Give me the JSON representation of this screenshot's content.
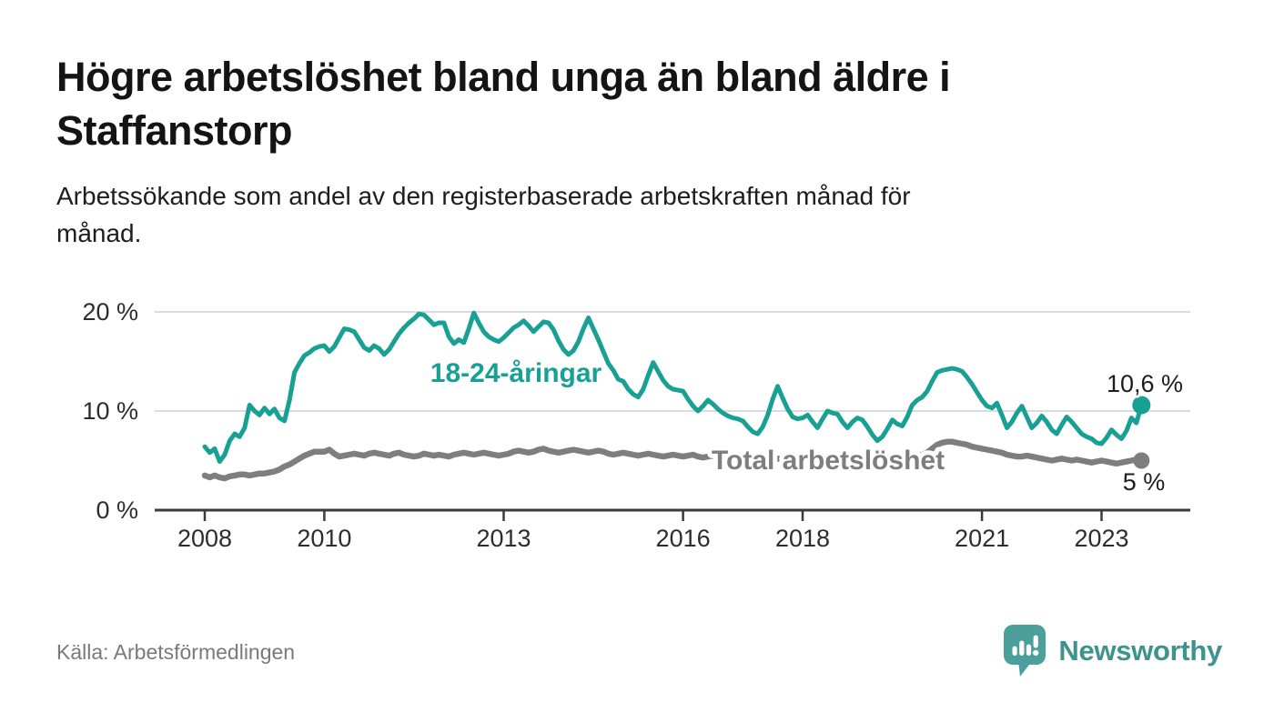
{
  "header": {
    "title_line1": "Högre arbetslöshet bland unga än bland äldre i",
    "title_line2": "Staffanstorp",
    "subtitle": "Arbetssökande som andel av den registerbaserade arbetskraften månad för månad."
  },
  "footer": {
    "source": "Källa: Arbetsförmedlingen",
    "logo_text": "Newsworthy"
  },
  "colors": {
    "youth_line": "#18a095",
    "total_line": "#7e7e7e",
    "axis": "#3b3b3b",
    "grid": "#dbdbdb",
    "logo_teal": "#4ca09b"
  },
  "chart_data": {
    "type": "line",
    "x_unit": "month",
    "x_range": [
      "2008-01",
      "2023-09"
    ],
    "x_tick_labels": [
      "2008",
      "2010",
      "2013",
      "2016",
      "2018",
      "2021",
      "2023"
    ],
    "y_tick_labels": [
      "0 %",
      "10 %",
      "20 %"
    ],
    "ylim": [
      0,
      22
    ],
    "grid": "horizontal",
    "legend_position": "inline-labels",
    "series": [
      {
        "name": "18-24-åringar",
        "color": "#18a095",
        "end_label": "10,6 %",
        "values": [
          6.4,
          5.8,
          6.2,
          4.9,
          5.6,
          7.0,
          7.7,
          7.4,
          8.3,
          10.6,
          10.0,
          9.6,
          10.3,
          9.7,
          10.2,
          9.3,
          9.0,
          11.1,
          13.9,
          14.8,
          15.6,
          15.9,
          16.3,
          16.5,
          16.6,
          16.0,
          16.5,
          17.4,
          18.3,
          18.2,
          18.0,
          17.2,
          16.4,
          16.1,
          16.6,
          16.3,
          15.7,
          16.2,
          17.0,
          17.8,
          18.4,
          18.9,
          19.3,
          19.8,
          19.7,
          19.2,
          18.7,
          18.9,
          18.9,
          17.5,
          16.8,
          17.2,
          16.9,
          18.3,
          19.9,
          18.9,
          18.0,
          17.5,
          17.2,
          17.0,
          17.4,
          17.9,
          18.4,
          18.7,
          19.1,
          18.6,
          18.0,
          18.5,
          19.0,
          18.9,
          18.2,
          17.1,
          16.2,
          15.7,
          16.1,
          17.0,
          18.3,
          19.4,
          18.3,
          17.2,
          16.0,
          14.8,
          14.1,
          13.2,
          13.0,
          12.2,
          11.7,
          11.4,
          12.2,
          13.6,
          14.9,
          14.0,
          13.1,
          12.5,
          12.2,
          12.1,
          12.0,
          11.2,
          10.5,
          10.0,
          10.5,
          11.1,
          10.7,
          10.2,
          9.8,
          9.5,
          9.3,
          9.2,
          9.0,
          8.4,
          7.9,
          7.7,
          8.4,
          9.6,
          11.2,
          12.5,
          11.3,
          10.2,
          9.4,
          9.2,
          9.3,
          9.6,
          8.9,
          8.3,
          9.2,
          10.0,
          9.8,
          9.7,
          8.9,
          8.3,
          8.9,
          9.3,
          9.1,
          8.4,
          7.6,
          7.0,
          7.4,
          8.2,
          9.1,
          8.7,
          8.5,
          9.4,
          10.6,
          11.1,
          11.4,
          12.0,
          13.0,
          13.9,
          14.1,
          14.2,
          14.3,
          14.2,
          14.0,
          13.4,
          12.7,
          11.9,
          11.1,
          10.5,
          10.3,
          10.8,
          9.6,
          8.3,
          8.9,
          9.8,
          10.5,
          9.4,
          8.3,
          8.8,
          9.5,
          8.9,
          8.1,
          7.7,
          8.6,
          9.4,
          8.9,
          8.3,
          7.7,
          7.4,
          7.2,
          6.8,
          6.7,
          7.3,
          8.1,
          7.6,
          7.2,
          8.0,
          9.3,
          8.8,
          10.6
        ]
      },
      {
        "name": "Total arbetslöshet",
        "color": "#7e7e7e",
        "end_label": "5 %",
        "values": [
          3.5,
          3.3,
          3.5,
          3.3,
          3.2,
          3.4,
          3.5,
          3.6,
          3.6,
          3.5,
          3.6,
          3.7,
          3.7,
          3.8,
          3.9,
          4.1,
          4.4,
          4.6,
          4.9,
          5.2,
          5.5,
          5.7,
          5.9,
          5.9,
          5.9,
          6.1,
          5.7,
          5.4,
          5.5,
          5.6,
          5.7,
          5.6,
          5.5,
          5.7,
          5.8,
          5.7,
          5.6,
          5.5,
          5.7,
          5.8,
          5.6,
          5.5,
          5.4,
          5.5,
          5.7,
          5.6,
          5.5,
          5.6,
          5.5,
          5.4,
          5.6,
          5.7,
          5.8,
          5.7,
          5.6,
          5.7,
          5.8,
          5.7,
          5.6,
          5.5,
          5.6,
          5.7,
          5.9,
          6.0,
          5.9,
          5.8,
          5.9,
          6.1,
          6.2,
          6.0,
          5.9,
          5.8,
          5.9,
          6.0,
          6.1,
          6.0,
          5.9,
          5.8,
          5.9,
          6.0,
          5.9,
          5.7,
          5.6,
          5.7,
          5.8,
          5.7,
          5.6,
          5.5,
          5.6,
          5.7,
          5.6,
          5.5,
          5.4,
          5.5,
          5.6,
          5.5,
          5.4,
          5.5,
          5.6,
          5.4,
          5.3,
          5.4,
          5.5,
          5.3,
          5.2,
          5.3,
          5.2,
          5.1,
          5.2,
          5.1,
          5.0,
          4.9,
          5.0,
          5.2,
          5.3,
          5.2,
          5.1,
          5.0,
          4.9,
          5.0,
          5.0,
          4.9,
          4.8,
          4.7,
          4.8,
          4.9,
          5.0,
          4.9,
          4.8,
          4.7,
          4.8,
          4.9,
          4.9,
          4.8,
          4.7,
          4.6,
          4.7,
          4.8,
          5.0,
          4.9,
          4.9,
          5.0,
          5.2,
          5.4,
          5.6,
          5.8,
          6.2,
          6.6,
          6.8,
          6.9,
          6.9,
          6.8,
          6.7,
          6.6,
          6.4,
          6.3,
          6.2,
          6.1,
          6.0,
          5.9,
          5.8,
          5.6,
          5.5,
          5.4,
          5.4,
          5.5,
          5.4,
          5.3,
          5.2,
          5.1,
          5.0,
          5.1,
          5.2,
          5.1,
          5.0,
          5.1,
          5.0,
          4.9,
          4.8,
          4.9,
          5.0,
          4.9,
          4.8,
          4.7,
          4.8,
          4.9,
          5.0,
          5.1,
          5.0
        ]
      }
    ]
  }
}
